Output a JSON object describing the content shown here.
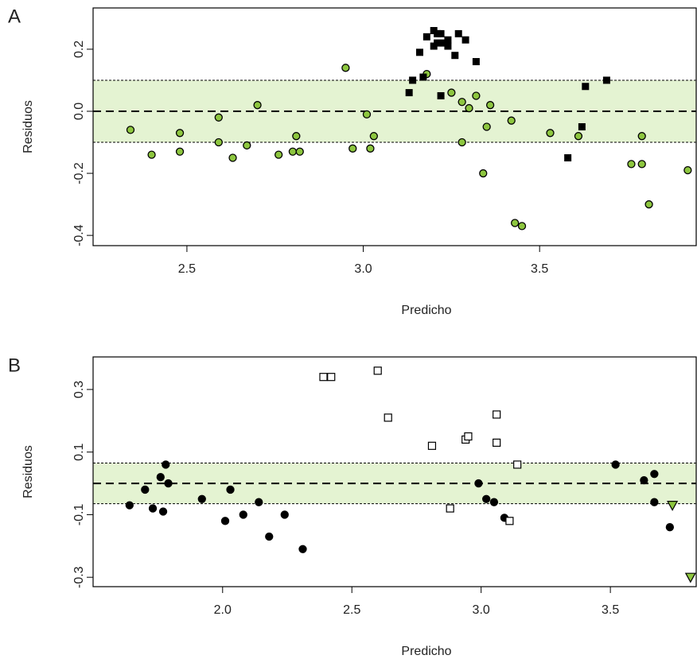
{
  "chart_data": [
    {
      "type": "scatter",
      "panel_label": "A",
      "x_label": "Predicho",
      "y_label": "Residuos",
      "xlim": [
        2.234,
        3.944
      ],
      "ylim": [
        -0.433,
        0.333
      ],
      "xticks": [
        2.5,
        {
          "value": 3,
          "label": "3.0"
        },
        3.5
      ],
      "yticks": [
        -0.4,
        -0.2,
        {
          "value": 0,
          "label": "0.0"
        },
        0.2
      ],
      "band": [
        -0.1,
        0.1
      ],
      "band_color": "#e4f3d2",
      "series": [
        {
          "marker": "circle",
          "color": "#8dc63f",
          "x": [
            2.34,
            2.4,
            2.48,
            2.48,
            2.59,
            2.59,
            2.63,
            2.67,
            2.7,
            2.76,
            2.8,
            2.81,
            2.82,
            2.95,
            2.97,
            3.01,
            3.02,
            3.03,
            3.18,
            3.25,
            3.28,
            3.3,
            3.28,
            3.32,
            3.35,
            3.34,
            3.36,
            3.42,
            3.43,
            3.45,
            3.53,
            3.61,
            3.76,
            3.79,
            3.79,
            3.81,
            3.92
          ],
          "values": [
            -0.06,
            -0.14,
            -0.07,
            -0.13,
            -0.02,
            -0.1,
            -0.15,
            -0.11,
            0.02,
            -0.14,
            -0.13,
            -0.08,
            -0.13,
            0.14,
            -0.12,
            -0.01,
            -0.12,
            -0.08,
            0.12,
            0.06,
            0.03,
            0.01,
            -0.1,
            0.05,
            -0.05,
            -0.2,
            0.02,
            -0.03,
            -0.36,
            -0.37,
            -0.07,
            -0.08,
            -0.17,
            -0.17,
            -0.08,
            -0.3,
            -0.19
          ]
        },
        {
          "marker": "square",
          "color": "#000000",
          "x": [
            3.13,
            3.14,
            3.16,
            3.17,
            3.18,
            3.2,
            3.21,
            3.22,
            3.2,
            3.21,
            3.23,
            3.24,
            3.24,
            3.26,
            3.27,
            3.29,
            3.32,
            3.22,
            3.63,
            3.62,
            3.58,
            3.69
          ],
          "values": [
            0.06,
            0.1,
            0.19,
            0.11,
            0.24,
            0.26,
            0.25,
            0.25,
            0.21,
            0.22,
            0.22,
            0.23,
            0.21,
            0.18,
            0.25,
            0.23,
            0.16,
            0.05,
            0.08,
            -0.05,
            -0.15,
            0.1
          ]
        }
      ]
    },
    {
      "type": "scatter",
      "panel_label": "B",
      "x_label": "Predicho",
      "y_label": "Residuos",
      "xlim": [
        1.499,
        3.832
      ],
      "ylim": [
        -0.33,
        0.404
      ],
      "xticks": [
        {
          "value": 2,
          "label": "2.0"
        },
        2.5,
        {
          "value": 3,
          "label": "3.0"
        },
        3.5
      ],
      "yticks": [
        -0.3,
        -0.1,
        0.1,
        0.3
      ],
      "band": [
        -0.065,
        0.065
      ],
      "band_color": "#e4f3d2",
      "series": [
        {
          "marker": "circle",
          "color": "#000000",
          "x": [
            1.64,
            1.7,
            1.73,
            1.76,
            1.78,
            1.77,
            1.79,
            1.92,
            2.01,
            2.03,
            2.08,
            2.14,
            2.18,
            2.24,
            2.31,
            2.99,
            3.02,
            3.05,
            3.09,
            3.52,
            3.63,
            3.67,
            3.67,
            3.73
          ],
          "values": [
            -0.07,
            -0.02,
            -0.08,
            0.02,
            0.06,
            -0.09,
            0.0,
            -0.05,
            -0.12,
            -0.02,
            -0.1,
            -0.06,
            -0.17,
            -0.1,
            -0.21,
            0.0,
            -0.05,
            -0.06,
            -0.11,
            0.06,
            0.01,
            0.03,
            -0.06,
            -0.14
          ]
        },
        {
          "marker": "open-square",
          "color": "#000000",
          "x": [
            2.39,
            2.42,
            2.6,
            2.64,
            2.81,
            2.94,
            2.95,
            3.06,
            3.06,
            3.14,
            2.88,
            3.11
          ],
          "values": [
            0.34,
            0.34,
            0.36,
            0.21,
            0.12,
            0.14,
            0.15,
            0.22,
            0.13,
            0.06,
            -0.08,
            -0.12
          ]
        },
        {
          "marker": "triangle",
          "color": "#8dc63f",
          "x": [
            3.74,
            3.81
          ],
          "values": [
            -0.07,
            -0.3
          ]
        }
      ]
    }
  ]
}
